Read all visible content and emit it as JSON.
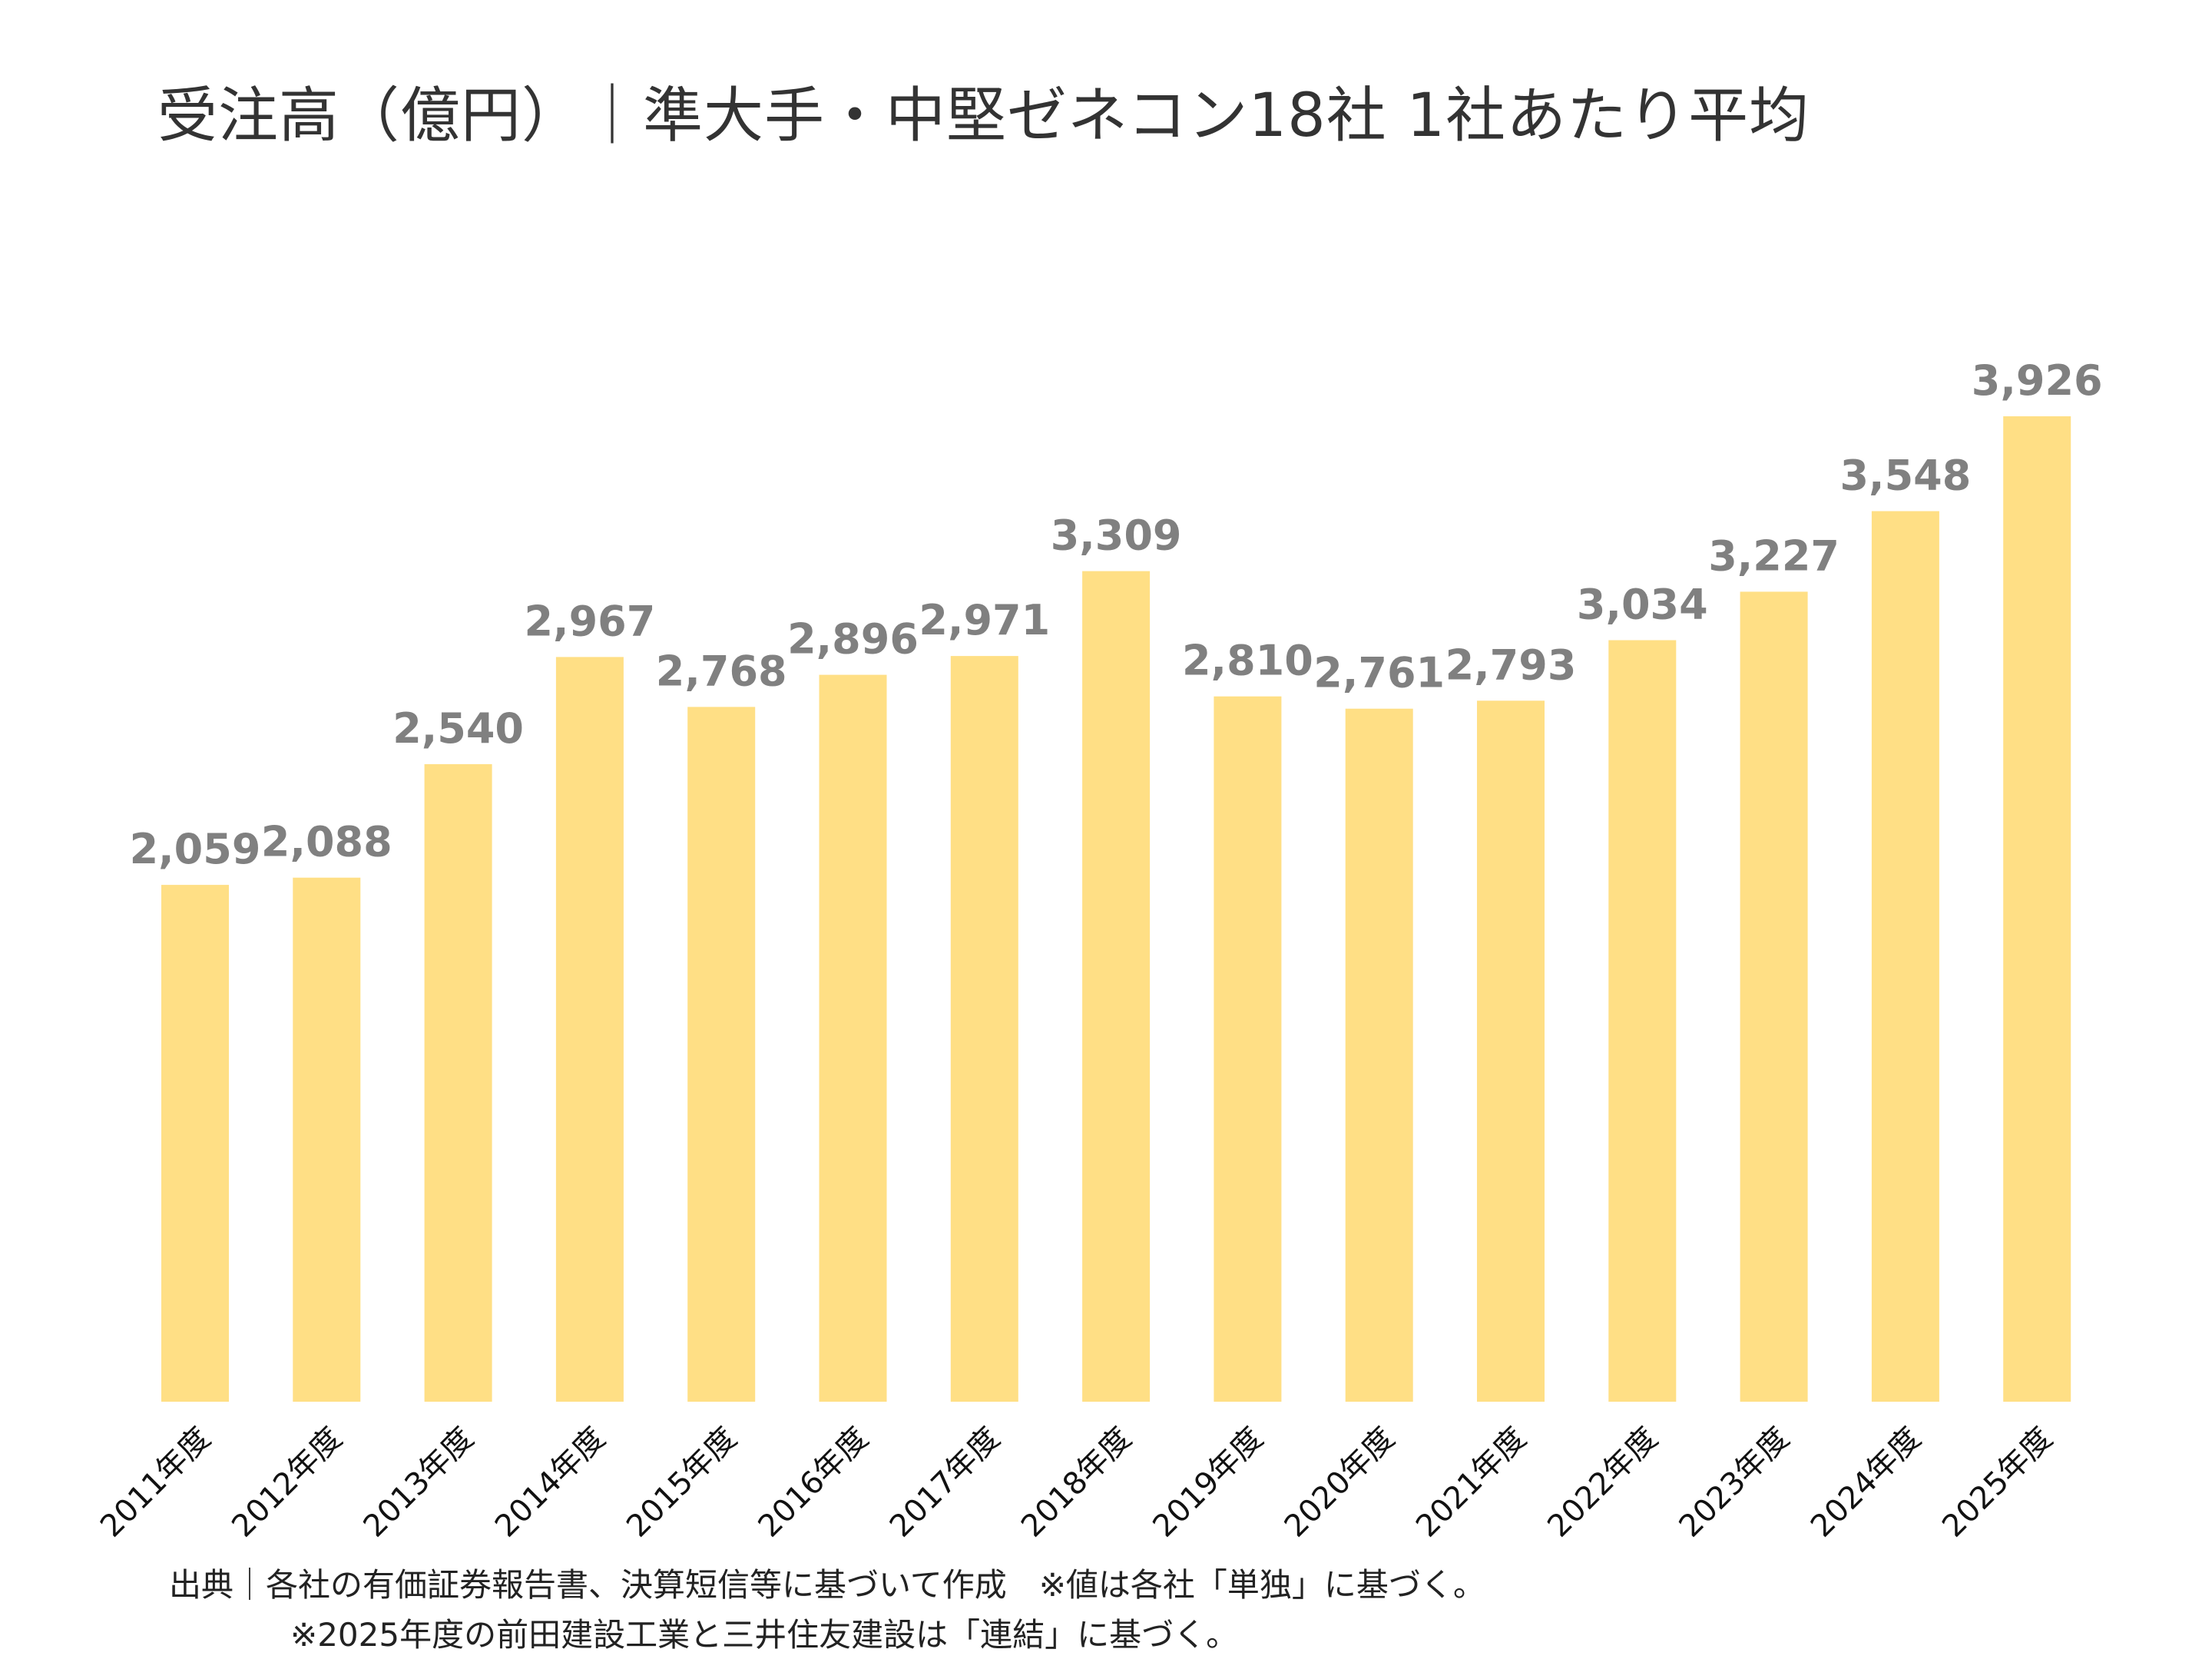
{
  "title": "受注高（億円）｜準大手・中堅ゼネコン18社 1社あたり平均",
  "chart_data": {
    "type": "bar",
    "categories": [
      "2011年度",
      "2012年度",
      "2013年度",
      "2014年度",
      "2015年度",
      "2016年度",
      "2017年度",
      "2018年度",
      "2019年度",
      "2020年度",
      "2021年度",
      "2022年度",
      "2023年度",
      "2024年度",
      "2025年度"
    ],
    "values": [
      2059,
      2088,
      2540,
      2967,
      2768,
      2896,
      2971,
      3309,
      2810,
      2761,
      2793,
      3034,
      3227,
      3548,
      3926
    ],
    "value_labels": [
      "2,059",
      "2,088",
      "2,540",
      "2,967",
      "2,768",
      "2,896",
      "2,971",
      "3,309",
      "2,810",
      "2,761",
      "2,793",
      "3,034",
      "3,227",
      "3,548",
      "3,926"
    ],
    "bar_color": "#FFDF85",
    "label_color": "#808080",
    "ylim": [
      0,
      4400
    ],
    "grid": false,
    "legend": "none"
  },
  "footnotes": {
    "line1": "出典｜各社の有価証券報告書、決算短信等に基づいて作成　※値は各社「単独」に基づく。",
    "line2": "※2025年度の前田建設工業と三井住友建設は「連結」に基づく。"
  }
}
